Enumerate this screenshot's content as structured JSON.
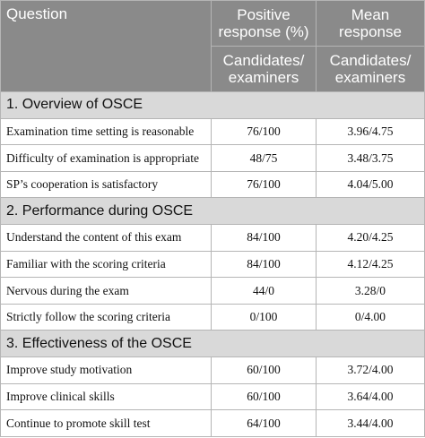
{
  "header": {
    "question": "Question",
    "positive": "Positive response (%)",
    "mean": "Mean response",
    "sub_positive": "Candidates/ examiners",
    "sub_mean": "Candidates/ examiners"
  },
  "sections": [
    {
      "title": "1. Overview of OSCE",
      "rows": [
        {
          "question": "Examination time setting is reasonable",
          "positive": "76/100",
          "mean": "3.96/4.75"
        },
        {
          "question": "Difficulty of examination is appropriate",
          "positive": "48/75",
          "mean": "3.48/3.75"
        },
        {
          "question": "SP’s cooperation is satisfactory",
          "positive": "76/100",
          "mean": "4.04/5.00"
        }
      ]
    },
    {
      "title": "2. Performance during OSCE",
      "rows": [
        {
          "question": "Understand the content of this exam",
          "positive": "84/100",
          "mean": "4.20/4.25"
        },
        {
          "question": "Familiar with the scoring criteria",
          "positive": "84/100",
          "mean": "4.12/4.25"
        },
        {
          "question": "Nervous during the exam",
          "positive": "44/0",
          "mean": "3.28/0"
        },
        {
          "question": "Strictly follow the scoring criteria",
          "positive": "0/100",
          "mean": "0/4.00"
        }
      ]
    },
    {
      "title": "3. Effectiveness of the OSCE",
      "rows": [
        {
          "question": "Improve study motivation",
          "positive": "60/100",
          "mean": "3.72/4.00"
        },
        {
          "question": "Improve clinical skills",
          "positive": "60/100",
          "mean": "3.64/4.00"
        },
        {
          "question": "Continue to promote skill test",
          "positive": "64/100",
          "mean": "3.44/4.00"
        }
      ]
    }
  ]
}
